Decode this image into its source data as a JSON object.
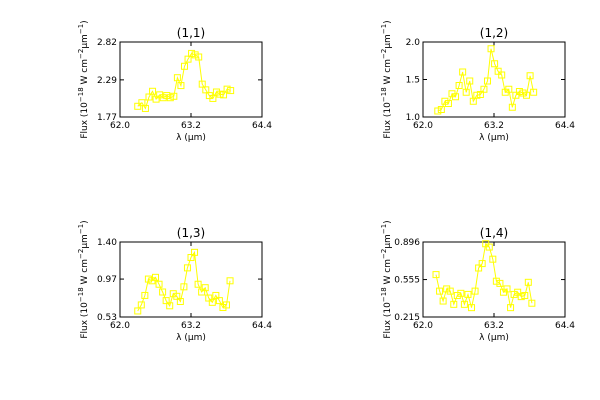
{
  "figure": {
    "series_color": "#ffff00",
    "marker": "open-square"
  },
  "chart_data": [
    {
      "type": "line",
      "title": "(1,1)",
      "xlabel": "λ (μm)",
      "ylabel": "Flux (10⁻¹⁸ W cm⁻²μm⁻¹)",
      "xlim": [
        62.0,
        64.4
      ],
      "ylim": [
        1.77,
        2.82
      ],
      "xticks": [
        "62.0",
        "63.2",
        "64.4"
      ],
      "yticks": [
        "1.77",
        "2.29",
        "2.82"
      ],
      "x": [
        62.3,
        62.37,
        62.43,
        62.49,
        62.55,
        62.61,
        62.67,
        62.73,
        62.79,
        62.85,
        62.91,
        62.97,
        63.03,
        63.09,
        63.15,
        63.21,
        63.27,
        63.33,
        63.39,
        63.45,
        63.51,
        63.57,
        63.63,
        63.69,
        63.75,
        63.81,
        63.87
      ],
      "y": [
        1.92,
        1.97,
        1.89,
        2.05,
        2.13,
        2.02,
        2.08,
        2.04,
        2.07,
        2.04,
        2.06,
        2.32,
        2.21,
        2.48,
        2.58,
        2.66,
        2.64,
        2.61,
        2.23,
        2.15,
        2.07,
        2.03,
        2.12,
        2.09,
        2.08,
        2.16,
        2.14
      ]
    },
    {
      "type": "line",
      "title": "(1,2)",
      "xlabel": "λ (μm)",
      "ylabel": "Flux (10⁻¹⁸ W cm⁻²μm⁻¹)",
      "xlim": [
        62.0,
        64.4
      ],
      "ylim": [
        1.0,
        2.0
      ],
      "xticks": [
        "62.0",
        "63.2",
        "64.4"
      ],
      "yticks": [
        "1.0",
        "1.5",
        "2.0"
      ],
      "x": [
        62.25,
        62.31,
        62.37,
        62.43,
        62.49,
        62.55,
        62.61,
        62.67,
        62.73,
        62.79,
        62.85,
        62.91,
        62.97,
        63.03,
        63.09,
        63.15,
        63.21,
        63.27,
        63.33,
        63.39,
        63.45,
        63.51,
        63.57,
        63.63,
        63.69,
        63.75,
        63.81,
        63.87
      ],
      "y": [
        1.08,
        1.1,
        1.21,
        1.18,
        1.31,
        1.27,
        1.42,
        1.6,
        1.33,
        1.48,
        1.21,
        1.29,
        1.3,
        1.37,
        1.48,
        1.91,
        1.71,
        1.61,
        1.56,
        1.33,
        1.37,
        1.13,
        1.29,
        1.34,
        1.32,
        1.29,
        1.55,
        1.33
      ]
    },
    {
      "type": "line",
      "title": "(1,3)",
      "xlabel": "λ (μm)",
      "ylabel": "Flux (10⁻¹⁸ W cm⁻²μm⁻¹)",
      "xlim": [
        62.0,
        64.4
      ],
      "ylim": [
        0.53,
        1.4
      ],
      "xticks": [
        "62.0",
        "63.2",
        "64.4"
      ],
      "yticks": [
        "0.53",
        "0.97",
        "1.40"
      ],
      "x": [
        62.3,
        62.36,
        62.42,
        62.48,
        62.54,
        62.6,
        62.66,
        62.72,
        62.78,
        62.84,
        62.9,
        62.96,
        63.02,
        63.08,
        63.14,
        63.2,
        63.26,
        63.32,
        63.38,
        63.44,
        63.5,
        63.56,
        63.62,
        63.68,
        63.74,
        63.8,
        63.86
      ],
      "y": [
        0.6,
        0.67,
        0.78,
        0.97,
        0.95,
        0.99,
        0.91,
        0.82,
        0.72,
        0.66,
        0.8,
        0.77,
        0.71,
        0.88,
        1.1,
        1.22,
        1.28,
        0.91,
        0.82,
        0.87,
        0.75,
        0.7,
        0.78,
        0.72,
        0.64,
        0.67,
        0.95
      ]
    },
    {
      "type": "line",
      "title": "(1,4)",
      "xlabel": "λ (μm)",
      "ylabel": "Flux (10⁻¹⁸ W cm⁻²μm⁻¹)",
      "xlim": [
        62.0,
        64.4
      ],
      "ylim": [
        0.215,
        0.896
      ],
      "xticks": [
        "62.0",
        "63.2",
        "64.4"
      ],
      "yticks": [
        "0.215",
        "0.555",
        "0.896"
      ],
      "x": [
        62.22,
        62.28,
        62.34,
        62.4,
        62.46,
        62.52,
        62.58,
        62.64,
        62.7,
        62.76,
        62.82,
        62.88,
        62.94,
        63.0,
        63.06,
        63.12,
        63.18,
        63.24,
        63.3,
        63.36,
        63.42,
        63.48,
        63.54,
        63.6,
        63.66,
        63.72,
        63.78,
        63.84
      ],
      "y": [
        0.6,
        0.45,
        0.36,
        0.47,
        0.45,
        0.33,
        0.41,
        0.43,
        0.33,
        0.42,
        0.3,
        0.45,
        0.66,
        0.7,
        0.88,
        0.85,
        0.74,
        0.54,
        0.52,
        0.44,
        0.47,
        0.3,
        0.42,
        0.44,
        0.4,
        0.41,
        0.53,
        0.34
      ]
    }
  ]
}
